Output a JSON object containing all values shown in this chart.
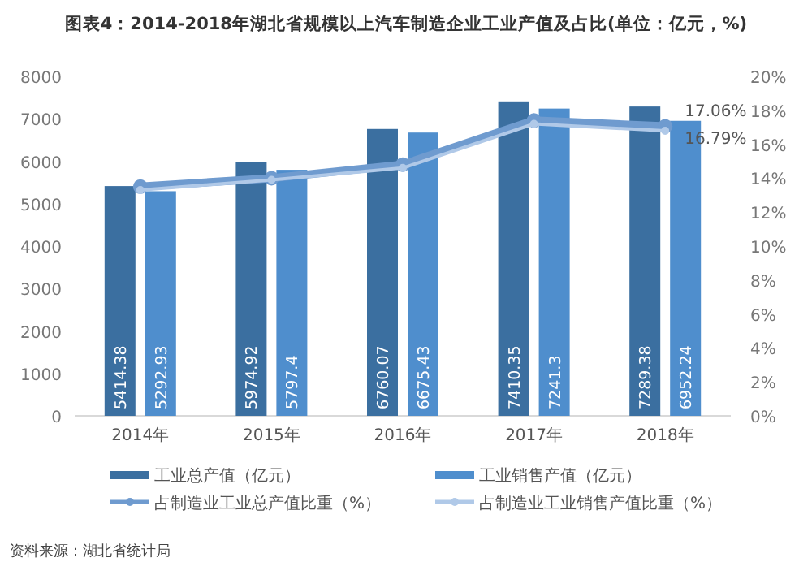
{
  "chart_data": {
    "type": "bar",
    "title": "图表4：2014-2018年湖北省规模以上汽车制造企业工业产值及占比(单位：亿元，%)",
    "categories": [
      "2014年",
      "2015年",
      "2016年",
      "2017年",
      "2018年"
    ],
    "series": [
      {
        "name": "工业总产值（亿元）",
        "color": "#3b6fa0",
        "values": [
          5414.38,
          5974.92,
          6760.07,
          7410.35,
          7289.38
        ]
      },
      {
        "name": "工业销售产值（亿元）",
        "color": "#4f8ecd",
        "values": [
          5292.93,
          5797.4,
          6675.43,
          7241.3,
          6952.24
        ]
      },
      {
        "name": "占制造业工业总产值比重（%）",
        "type": "line",
        "axis": "y2",
        "color": "#6f9bcf",
        "marker": "circle",
        "values": [
          13.5,
          14.0,
          14.8,
          17.4,
          17.06
        ],
        "value_labels": [
          null,
          null,
          null,
          null,
          "17.06%"
        ]
      },
      {
        "name": "占制造业工业销售产值比重（%）",
        "type": "line",
        "axis": "y2",
        "color": "#b0c9e8",
        "marker": "circle",
        "values": [
          13.3,
          13.9,
          14.6,
          17.2,
          16.79
        ],
        "value_labels": [
          null,
          null,
          null,
          null,
          "16.79%"
        ]
      }
    ],
    "data_labels": true,
    "ylim": [
      0,
      8000
    ],
    "yticks": [
      0,
      1000,
      2000,
      3000,
      4000,
      5000,
      6000,
      7000,
      8000
    ],
    "y2lim": [
      0,
      20
    ],
    "y2ticks": [
      {
        "value": 0,
        "label": "0%"
      },
      {
        "value": 2,
        "label": "2%"
      },
      {
        "value": 4,
        "label": "4%"
      },
      {
        "value": 6,
        "label": "6%"
      },
      {
        "value": 8,
        "label": "8%"
      },
      {
        "value": 10,
        "label": "10%"
      },
      {
        "value": 12,
        "label": "12%"
      },
      {
        "value": 14,
        "label": "14%"
      },
      {
        "value": 16,
        "label": "16%"
      },
      {
        "value": 18,
        "label": "18%"
      },
      {
        "value": 20,
        "label": "20%"
      }
    ],
    "grid": false,
    "legend": "bottom",
    "annotations": [
      "资料来源：湖北省统计局"
    ]
  }
}
